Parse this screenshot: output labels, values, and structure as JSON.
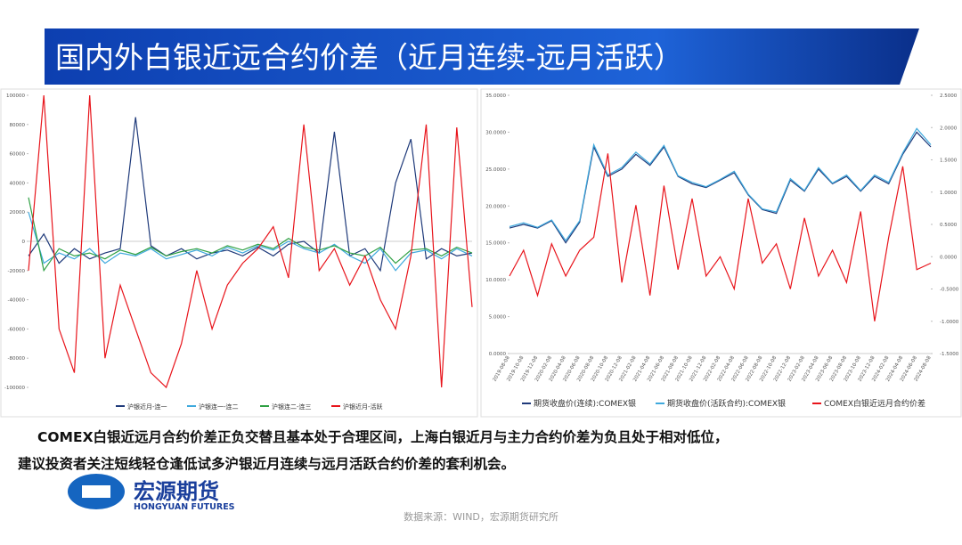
{
  "header": {
    "title": "国内外白银近远合约价差（近月连续-远月活跃）"
  },
  "chart_data": [
    {
      "type": "line",
      "categories": [
        null,
        null,
        null,
        null,
        null,
        null,
        null,
        null,
        null,
        null,
        null,
        null,
        null,
        null,
        null,
        null,
        null,
        null,
        null,
        null,
        null,
        null,
        null,
        null,
        null,
        null,
        null,
        null,
        null,
        null
      ],
      "ylim": [
        -100000,
        100000
      ],
      "yticks": [
        100000,
        80000,
        60000,
        40000,
        20000,
        0,
        -20000,
        -40000,
        -60000,
        -80000,
        -100000
      ],
      "grid": false,
      "series": [
        {
          "name": "沪银近月-连一",
          "color": "#1f3a7a",
          "values": [
            -10000,
            5000,
            -15000,
            -5000,
            -12000,
            -8000,
            -5000,
            85000,
            -3000,
            -10000,
            -5000,
            -12000,
            -8000,
            -6000,
            -10000,
            -4000,
            -10000,
            -2000,
            0,
            -8000,
            75000,
            -10000,
            -5000,
            -20000,
            40000,
            70000,
            -12000,
            -5000,
            -10000,
            -8000
          ]
        },
        {
          "name": "沪银连一-连二",
          "color": "#3fa9dd",
          "values": [
            20000,
            -15000,
            -8000,
            -12000,
            -5000,
            -15000,
            -8000,
            -10000,
            -5000,
            -12000,
            -9000,
            -6000,
            -10000,
            -4000,
            -8000,
            -3000,
            -6000,
            0,
            -5000,
            -8000,
            -2000,
            -10000,
            -15000,
            -5000,
            -20000,
            -8000,
            -6000,
            -12000,
            -5000,
            -10000
          ]
        },
        {
          "name": "沪银连二-连三",
          "color": "#2ea043",
          "values": [
            30000,
            -20000,
            -5000,
            -10000,
            -8000,
            -12000,
            -6000,
            -9000,
            -4000,
            -10000,
            -7000,
            -5000,
            -8000,
            -3000,
            -6000,
            -2000,
            -5000,
            2000,
            -4000,
            -6000,
            -3000,
            -8000,
            -10000,
            -4000,
            -15000,
            -6000,
            -5000,
            -10000,
            -4000,
            -8000
          ]
        },
        {
          "name": "沪银近月-活跃",
          "color": "#e8141b",
          "values": [
            -20000,
            100000,
            -60000,
            -90000,
            100000,
            -80000,
            -30000,
            -60000,
            -90000,
            -100000,
            -70000,
            -20000,
            -60000,
            -30000,
            -15000,
            -5000,
            10000,
            -25000,
            80000,
            -20000,
            -5000,
            -30000,
            -10000,
            -40000,
            -60000,
            -10000,
            80000,
            -100000,
            78000,
            -45000
          ]
        }
      ]
    },
    {
      "type": "line",
      "categories": [
        "2019-08-08",
        "2019-10-08",
        "2019-12-08",
        "2020-02-08",
        "2020-04-08",
        "2020-06-08",
        "2020-08-08",
        "2020-10-08",
        "2020-12-08",
        "2021-02-08",
        "2021-04-08",
        "2021-06-08",
        "2021-08-08",
        "2021-10-08",
        "2021-12-08",
        "2022-02-08",
        "2022-04-08",
        "2022-06-08",
        "2022-08-08",
        "2022-10-08",
        "2022-12-08",
        "2023-02-08",
        "2023-04-08",
        "2023-06-08",
        "2023-08-08",
        "2023-10-08",
        "2023-12-08",
        "2024-02-08",
        "2024-04-08",
        "2024-06-08",
        "2024-08-08"
      ],
      "ylim": [
        0,
        35
      ],
      "yticks": [
        {
          "value": 0,
          "label": "0.0000"
        },
        {
          "value": 5,
          "label": "5.0000"
        },
        {
          "value": 10,
          "label": "10.0000"
        },
        {
          "value": 15,
          "label": "15.0000"
        },
        {
          "value": 20,
          "label": "20.0000"
        },
        {
          "value": 25,
          "label": "25.0000"
        },
        {
          "value": 30,
          "label": "30.0000"
        },
        {
          "value": 35,
          "label": "35.0000"
        }
      ],
      "y2lim": [
        -1.5,
        2.5
      ],
      "y2ticks": [
        {
          "value": -1.5,
          "label": "-1.5000"
        },
        {
          "value": -1,
          "label": "-1.0000"
        },
        {
          "value": -0.5,
          "label": "-0.5000"
        },
        {
          "value": 0,
          "label": "0.0000"
        },
        {
          "value": 0.5,
          "label": "0.5000"
        },
        {
          "value": 1,
          "label": "1.0000"
        },
        {
          "value": 1.5,
          "label": "1.5000"
        },
        {
          "value": 2,
          "label": "2.0000"
        },
        {
          "value": 2.5,
          "label": "2.5000"
        }
      ],
      "grid": false,
      "series": [
        {
          "name": "期货收盘价(连续):COMEX银",
          "color": "#1f3a7a",
          "values": [
            17,
            17.5,
            17,
            18,
            15,
            17.8,
            28,
            24,
            25,
            27,
            25.5,
            28,
            24,
            23,
            22.5,
            23.5,
            24.5,
            21.5,
            19.5,
            19,
            23.5,
            22,
            25,
            23,
            24,
            22,
            24,
            23,
            27,
            30,
            28
          ]
        },
        {
          "name": "期货收盘价(活跃合约):COMEX银",
          "color": "#3fa9dd",
          "values": [
            17.2,
            17.7,
            17.1,
            18.1,
            15.3,
            18,
            28.3,
            24.2,
            25.2,
            27.3,
            25.7,
            28.2,
            24.1,
            23.2,
            22.6,
            23.6,
            24.7,
            21.6,
            19.6,
            19.2,
            23.7,
            22.1,
            25.2,
            23.1,
            24.2,
            22.1,
            24.2,
            23.2,
            27.2,
            30.5,
            28.3
          ]
        },
        {
          "name": "COMEX白银近远月合约价差",
          "color": "#e8141b",
          "axis": "y2",
          "values": [
            -0.3,
            0.1,
            -0.6,
            0.2,
            -0.3,
            0.1,
            0.3,
            1.6,
            -0.4,
            0.8,
            -0.6,
            1.1,
            -0.2,
            0.9,
            -0.3,
            0,
            -0.5,
            0.9,
            -0.1,
            0.2,
            -0.5,
            0.6,
            -0.3,
            0.1,
            -0.4,
            0.7,
            -1,
            0.3,
            1.4,
            -0.2,
            -0.1
          ]
        }
      ]
    }
  ],
  "body": {
    "lines": [
      "COMEX白银近远月合约价差正负交替且基本处于合理区间，上海白银近月与主力合约价差为负且处于相对低位，",
      "建议投资者关注短线轻仓逢低试多沪银近月连续与远月活跃合约价差的套利机会。"
    ]
  },
  "logo": {
    "name": "宏源期货",
    "english": "HONGYUAN FUTURES"
  },
  "footer": {
    "source": "数据来源：WIND，宏源期货研究所"
  }
}
